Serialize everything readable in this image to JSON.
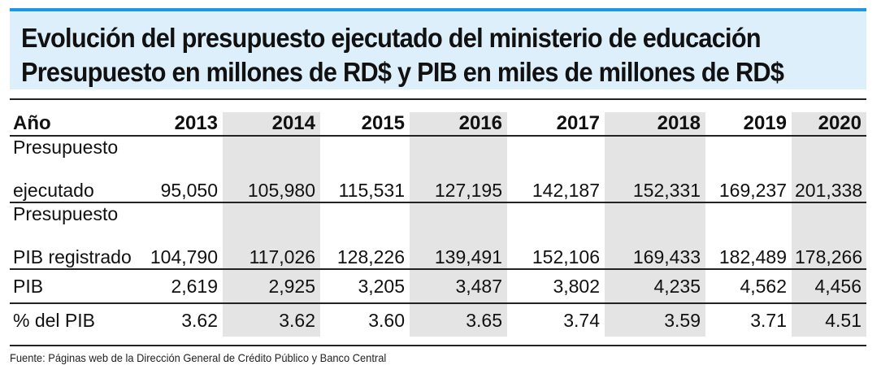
{
  "title": {
    "line1": "Evolución del presupuesto ejecutado del ministerio de educación",
    "line2": "Presupuesto en millones de RD$ y PIB en miles de millones de RD$"
  },
  "table": {
    "header": {
      "label": "Año",
      "years": [
        "2013",
        "2014",
        "2015",
        "2016",
        "2017",
        "2018",
        "2019",
        "2020"
      ]
    },
    "rows": [
      {
        "label_line1": "Presupuesto",
        "label_line2": "ejecutado",
        "values": [
          "95,050",
          "105,980",
          "115,531",
          "127,195",
          "142,187",
          "152,331",
          "169,237",
          "201,338"
        ]
      },
      {
        "label_line1": "Presupuesto",
        "label_line2": "PIB registrado",
        "values": [
          "104,790",
          "117,026",
          "128,226",
          "139,491",
          "152,106",
          "169,433",
          "182,489",
          "178,266"
        ]
      },
      {
        "label": "PIB",
        "values": [
          "2,619",
          "2,925",
          "3,205",
          "3,487",
          "3,802",
          "4,235",
          "4,562",
          "4,456"
        ]
      },
      {
        "label": "% del PIB",
        "values": [
          "3.62",
          "3.62",
          "3.60",
          "3.65",
          "3.74",
          "3.59",
          "3.71",
          "4.51"
        ]
      }
    ]
  },
  "source": "Fuente: Páginas web de la Dirección General de Crédito Público y Banco Central",
  "colors": {
    "title_bg": "#ddeffb",
    "title_accent": "#1f97e6",
    "shade": "#e4e4e4"
  }
}
